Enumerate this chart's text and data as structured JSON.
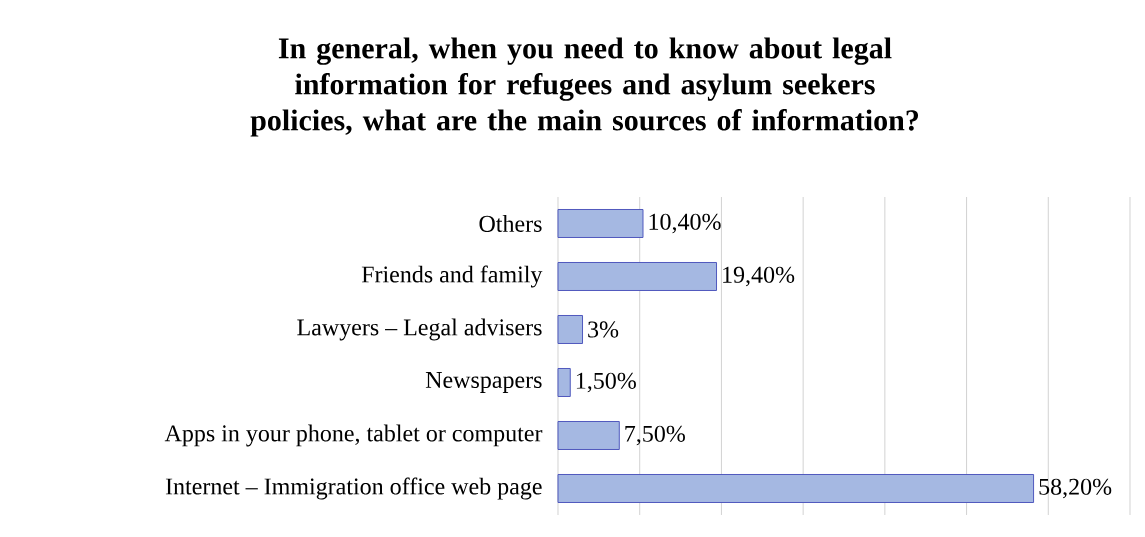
{
  "chart_data": {
    "type": "bar",
    "orientation": "horizontal",
    "title": "In general, when you need to know about legal information for refugees and asylum seekers policies, what are the main sources of information?",
    "categories": [
      "Others",
      "Friends and family",
      "Lawyers – Legal advisers",
      "Newspapers",
      "Apps in your phone, tablet or computer",
      "Internet – Immigration office web page"
    ],
    "values": [
      10.4,
      19.4,
      3,
      1.5,
      7.5,
      58.2
    ],
    "value_labels": [
      "10,40%",
      "19,40%",
      "3%",
      "1,50%",
      "7,50%",
      "58,20%"
    ],
    "color": "#a5b8e2",
    "xlim": [
      0,
      70
    ],
    "xticks": [
      {
        "value": 0,
        "label": null
      },
      {
        "value": 10,
        "label": null
      },
      {
        "value": 20,
        "label": null
      },
      {
        "value": 30,
        "label": null
      },
      {
        "value": 40,
        "label": null
      },
      {
        "value": 50,
        "label": null
      },
      {
        "value": 60,
        "label": null
      },
      {
        "value": 70,
        "label": null
      }
    ],
    "grid": "x",
    "tick_labels": "y"
  }
}
